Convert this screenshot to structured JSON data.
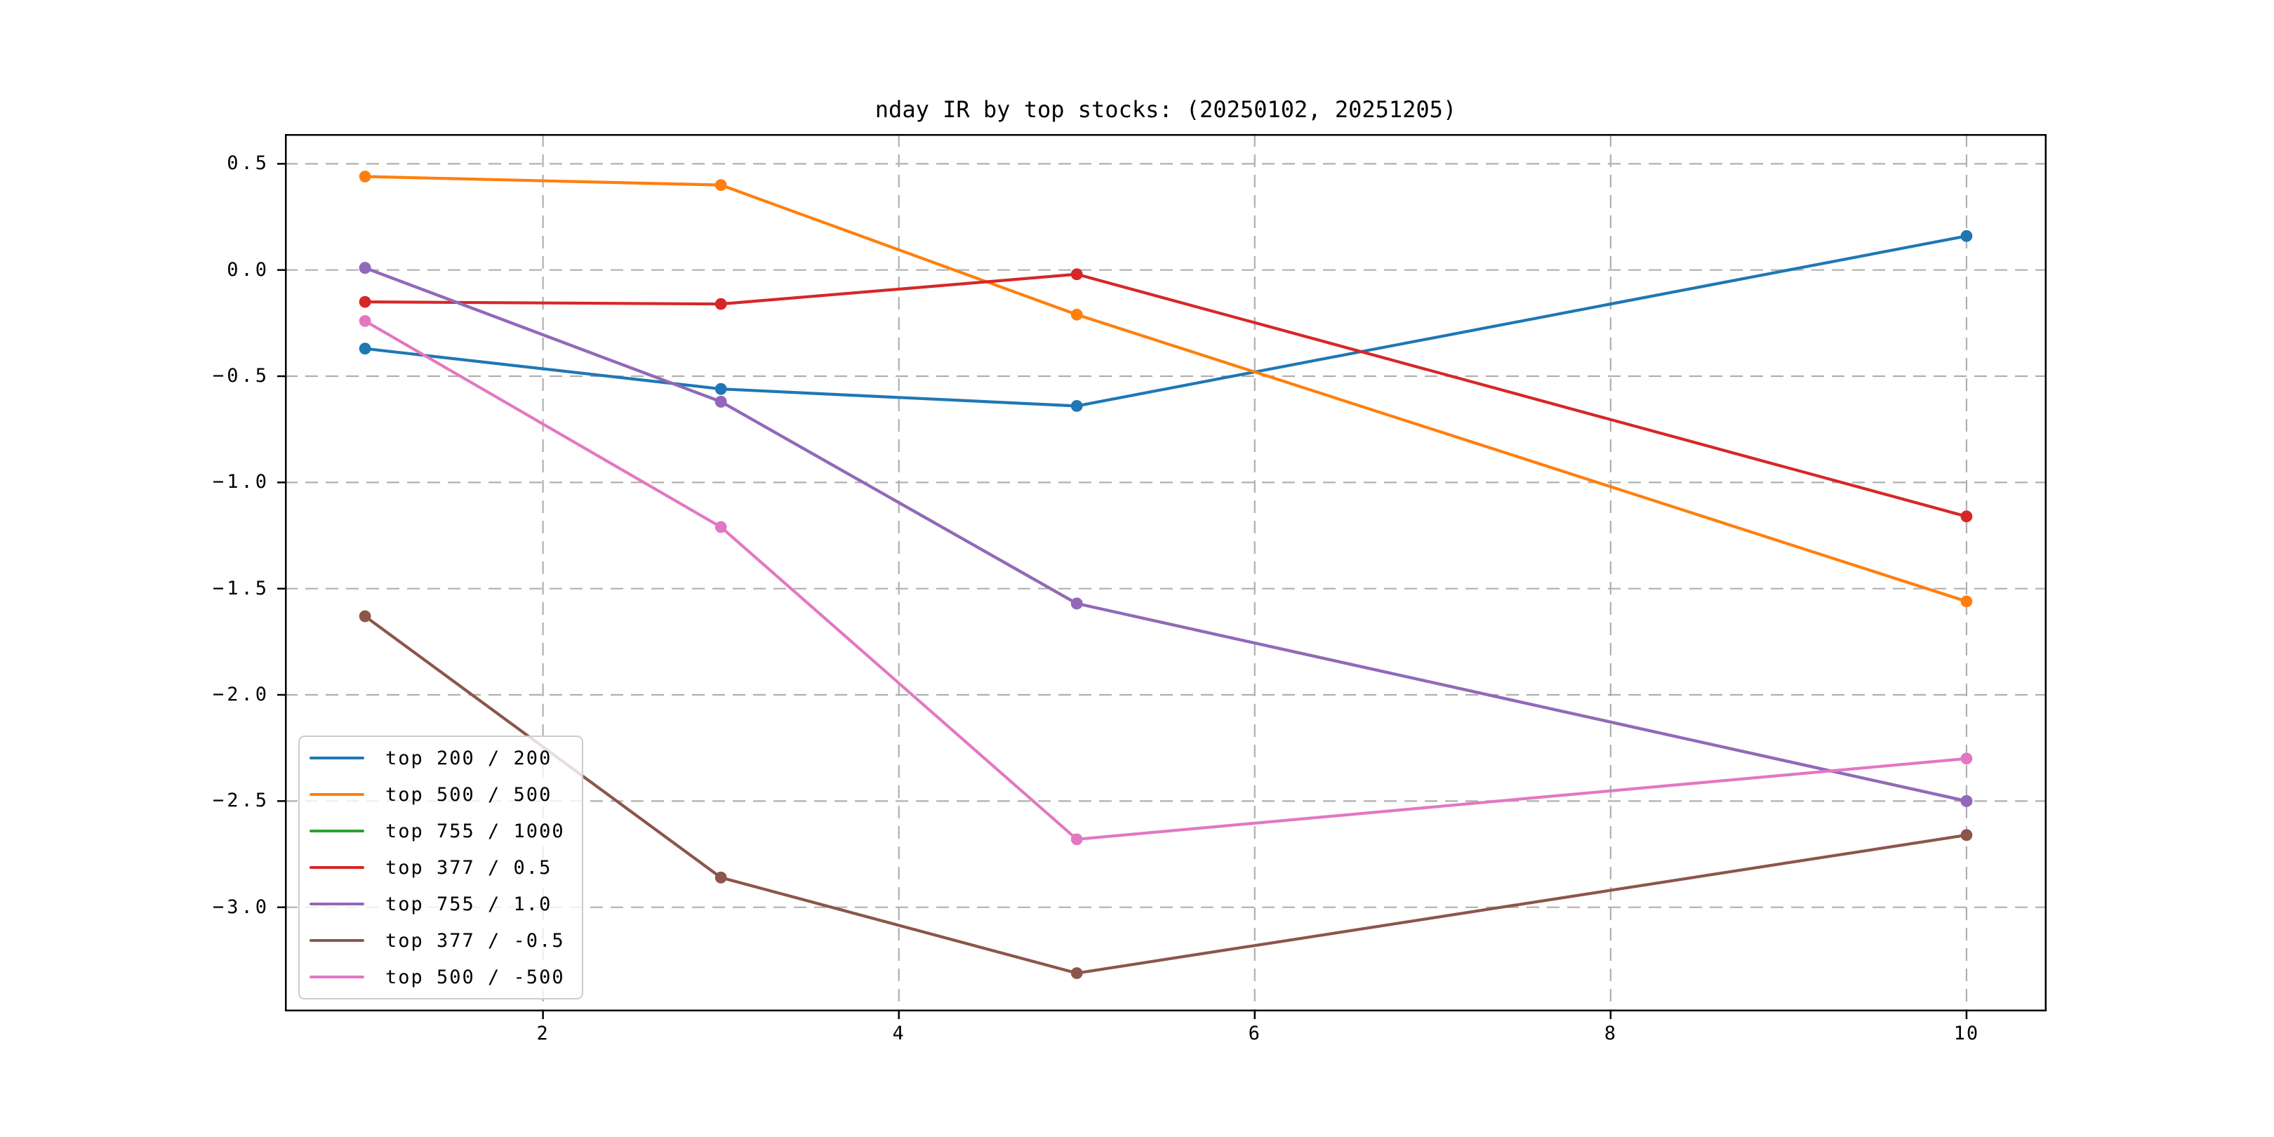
{
  "chart_data": {
    "type": "line",
    "title": "nday IR by top stocks: (20250102, 20251205)",
    "x": [
      1,
      3,
      5,
      10
    ],
    "series": [
      {
        "name": "top 200 / 200",
        "color": "#1f77b4",
        "values": [
          -0.37,
          -0.56,
          -0.64,
          0.16
        ]
      },
      {
        "name": "top 500 / 500",
        "color": "#ff7f0e",
        "values": [
          0.44,
          0.4,
          -0.21,
          -1.56
        ]
      },
      {
        "name": "top 755 / 1000",
        "color": "#2ca02c",
        "values": [
          0.01,
          -0.62,
          -1.57,
          -2.5
        ],
        "hidden_behind": "top 755 / 1.0"
      },
      {
        "name": "top 377 / 0.5",
        "color": "#d62728",
        "values": [
          -0.15,
          -0.16,
          -0.02,
          -1.16
        ]
      },
      {
        "name": "top 755 / 1.0",
        "color": "#9467bd",
        "values": [
          0.01,
          -0.62,
          -1.57,
          -2.5
        ]
      },
      {
        "name": "top 377 / -0.5",
        "color": "#8c564b",
        "values": [
          -1.63,
          -2.86,
          -3.31,
          -2.66
        ]
      },
      {
        "name": "top 500 / -500",
        "color": "#e377c2",
        "values": [
          -0.24,
          -1.21,
          -2.68,
          -2.3
        ]
      }
    ],
    "xlim": [
      0.55,
      10.45
    ],
    "ylim": [
      -3.49,
      0.64
    ],
    "x_ticks": {
      "values": [
        2,
        4,
        6,
        8,
        10
      ],
      "labels": [
        "2",
        "4",
        "6",
        "8",
        "10"
      ]
    },
    "y_ticks": {
      "values": [
        0.5,
        0.0,
        -0.5,
        -1.0,
        -1.5,
        -2.0,
        -2.5,
        -3.0
      ],
      "labels": [
        "0.5",
        "0.0",
        "−0.5",
        "−1.0",
        "−1.5",
        "−2.0",
        "−2.5",
        "−3.0"
      ]
    },
    "grid": "dashed",
    "legend_position": "lower left",
    "marker": "circle",
    "style": {
      "background": "#ffffff",
      "text_color": "#000000",
      "grid_color": "#b0b0b0",
      "spine_color": "#000000",
      "legend_border": "#cccccc",
      "line_width": 4.2,
      "marker_radius": 8.4
    }
  }
}
